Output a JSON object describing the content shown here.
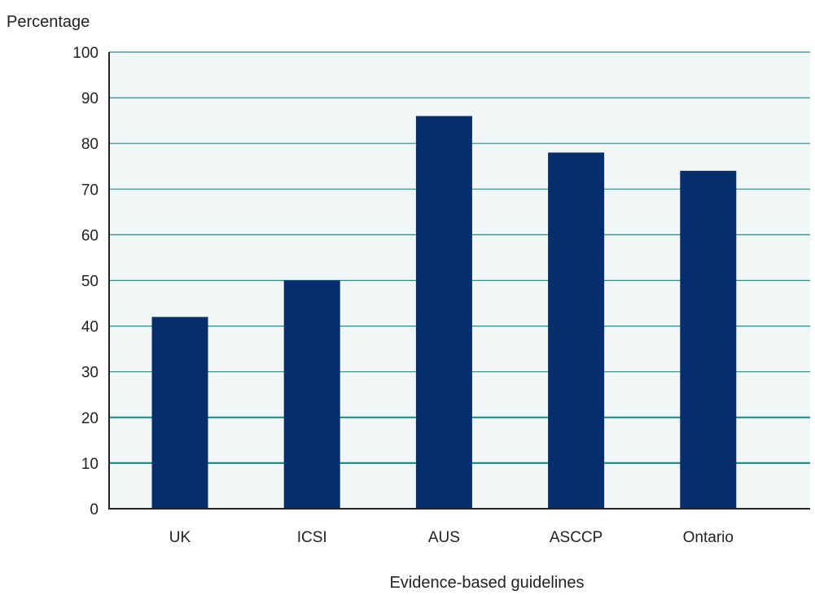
{
  "chart_data": {
    "type": "bar",
    "categories": [
      "UK",
      "ICSI",
      "AUS",
      "ASCCP",
      "Ontario"
    ],
    "values": [
      42,
      50,
      86,
      78,
      74
    ],
    "title": "",
    "xlabel": "Evidence-based guidelines",
    "ylabel": "Percentage",
    "ylim": [
      0,
      100
    ],
    "yticks": [
      0,
      10,
      20,
      30,
      40,
      50,
      60,
      70,
      80,
      90,
      100
    ],
    "grid": true,
    "colors": {
      "bar": "#062d6e",
      "grid": "#2a8a8a",
      "plot_background": "#f1f7f7",
      "axis": "#222222"
    }
  }
}
